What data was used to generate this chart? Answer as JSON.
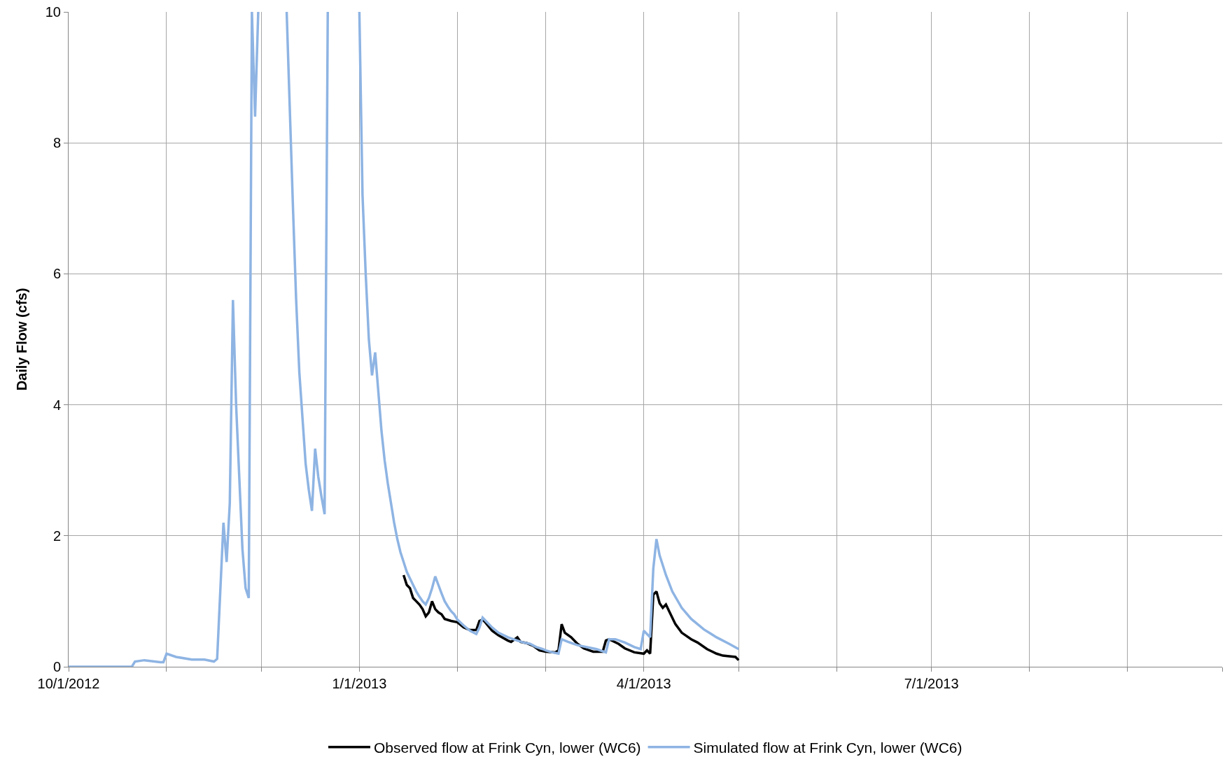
{
  "chart_data": {
    "type": "line",
    "ylabel": "Daily Flow (cfs)",
    "xlim": [
      "2012-10-01",
      "2013-10-01"
    ],
    "xticks": [
      {
        "value": "2012-10-01",
        "label": "10/1/2012"
      },
      {
        "value": "2012-11-01",
        "label": null
      },
      {
        "value": "2012-12-01",
        "label": null
      },
      {
        "value": "2013-01-01",
        "label": "1/1/2013"
      },
      {
        "value": "2013-02-01",
        "label": null
      },
      {
        "value": "2013-03-01",
        "label": null
      },
      {
        "value": "2013-04-01",
        "label": "4/1/2013"
      },
      {
        "value": "2013-05-01",
        "label": null
      },
      {
        "value": "2013-06-01",
        "label": null
      },
      {
        "value": "2013-07-01",
        "label": "7/1/2013"
      },
      {
        "value": "2013-08-01",
        "label": null
      },
      {
        "value": "2013-09-01",
        "label": null
      },
      {
        "value": "2013-10-01",
        "label": null
      }
    ],
    "ylim": [
      0,
      10
    ],
    "yticks": [
      0,
      2,
      4,
      6,
      8,
      10
    ],
    "grid": true,
    "legend": "bottom",
    "marker": "none",
    "line_style": "solid",
    "series": [
      {
        "name": "Observed flow at Frink Cyn, lower (WC6)",
        "color": "#000000",
        "x": [
          "2013-01-15",
          "2013-01-16",
          "2013-01-17",
          "2013-01-18",
          "2013-01-19",
          "2013-01-20",
          "2013-01-21",
          "2013-01-22",
          "2013-01-23",
          "2013-01-24",
          "2013-01-25",
          "2013-01-26",
          "2013-01-27",
          "2013-01-28",
          "2013-01-30",
          "2013-02-01",
          "2013-02-03",
          "2013-02-05",
          "2013-02-07",
          "2013-02-08",
          "2013-02-09",
          "2013-02-10",
          "2013-02-12",
          "2013-02-14",
          "2013-02-17",
          "2013-02-18",
          "2013-02-20",
          "2013-02-21",
          "2013-02-23",
          "2013-02-25",
          "2013-02-27",
          "2013-03-01",
          "2013-03-04",
          "2013-03-05",
          "2013-03-06",
          "2013-03-07",
          "2013-03-09",
          "2013-03-11",
          "2013-03-13",
          "2013-03-16",
          "2013-03-19",
          "2013-03-20",
          "2013-03-21",
          "2013-03-24",
          "2013-03-26",
          "2013-03-29",
          "2013-04-01",
          "2013-04-02",
          "2013-04-03",
          "2013-04-04",
          "2013-04-05",
          "2013-04-06",
          "2013-04-07",
          "2013-04-08",
          "2013-04-09",
          "2013-04-11",
          "2013-04-13",
          "2013-04-16",
          "2013-04-18",
          "2013-04-21",
          "2013-04-24",
          "2013-04-26",
          "2013-04-30",
          "2013-05-01"
        ],
        "values": [
          1.4,
          1.25,
          1.2,
          1.05,
          1.0,
          0.95,
          0.88,
          0.77,
          0.83,
          1.0,
          0.88,
          0.83,
          0.8,
          0.73,
          0.7,
          0.68,
          0.6,
          0.56,
          0.56,
          0.7,
          0.72,
          0.67,
          0.55,
          0.48,
          0.4,
          0.38,
          0.45,
          0.38,
          0.36,
          0.32,
          0.25,
          0.23,
          0.22,
          0.25,
          0.65,
          0.52,
          0.45,
          0.35,
          0.28,
          0.23,
          0.23,
          0.4,
          0.42,
          0.35,
          0.28,
          0.22,
          0.2,
          0.25,
          0.2,
          1.1,
          1.15,
          0.97,
          0.9,
          0.95,
          0.85,
          0.65,
          0.52,
          0.42,
          0.37,
          0.27,
          0.2,
          0.17,
          0.15,
          0.1
        ]
      },
      {
        "name": "Simulated flow at Frink Cyn, lower (WC6)",
        "color": "#8eb4e3",
        "x": [
          "2012-10-01",
          "2012-10-21",
          "2012-10-22",
          "2012-10-25",
          "2012-10-30",
          "2012-10-31",
          "2012-11-01",
          "2012-11-04",
          "2012-11-09",
          "2012-11-13",
          "2012-11-16",
          "2012-11-17",
          "2012-11-19",
          "2012-11-20",
          "2012-11-21",
          "2012-11-22",
          "2012-11-23",
          "2012-11-24",
          "2012-11-25",
          "2012-11-26",
          "2012-11-27",
          "2012-11-28",
          "2012-11-29",
          "2012-11-30",
          "2012-12-05",
          "2012-12-09",
          "2012-12-10",
          "2012-12-11",
          "2012-12-12",
          "2012-12-13",
          "2012-12-14",
          "2012-12-15",
          "2012-12-16",
          "2012-12-17",
          "2012-12-18",
          "2012-12-19",
          "2012-12-20",
          "2012-12-21",
          "2012-12-22",
          "2012-12-27",
          "2013-01-01",
          "2013-01-02",
          "2013-01-03",
          "2013-01-04",
          "2013-01-05",
          "2013-01-06",
          "2013-01-07",
          "2013-01-08",
          "2013-01-09",
          "2013-01-10",
          "2013-01-11",
          "2013-01-12",
          "2013-01-13",
          "2013-01-14",
          "2013-01-15",
          "2013-01-16",
          "2013-01-17",
          "2013-01-18",
          "2013-01-19",
          "2013-01-20",
          "2013-01-21",
          "2013-01-22",
          "2013-01-23",
          "2013-01-24",
          "2013-01-25",
          "2013-01-26",
          "2013-01-27",
          "2013-01-28",
          "2013-01-29",
          "2013-01-30",
          "2013-01-31",
          "2013-02-01",
          "2013-02-03",
          "2013-02-05",
          "2013-02-07",
          "2013-02-08",
          "2013-02-09",
          "2013-02-10",
          "2013-02-12",
          "2013-02-14",
          "2013-02-17",
          "2013-02-20",
          "2013-02-22",
          "2013-02-24",
          "2013-02-26",
          "2013-02-28",
          "2013-03-01",
          "2013-03-03",
          "2013-03-05",
          "2013-03-06",
          "2013-03-08",
          "2013-03-11",
          "2013-03-14",
          "2013-03-17",
          "2013-03-20",
          "2013-03-21",
          "2013-03-23",
          "2013-03-26",
          "2013-03-29",
          "2013-03-31",
          "2013-04-01",
          "2013-04-03",
          "2013-04-04",
          "2013-04-05",
          "2013-04-06",
          "2013-04-08",
          "2013-04-10",
          "2013-04-13",
          "2013-04-16",
          "2013-04-20",
          "2013-04-24",
          "2013-04-28",
          "2013-05-01"
        ],
        "values": [
          0,
          0,
          0.08,
          0.1,
          0.07,
          0.07,
          0.2,
          0.15,
          0.11,
          0.11,
          0.08,
          0.12,
          2.2,
          1.6,
          2.5,
          5.6,
          4.0,
          2.9,
          1.8,
          1.2,
          1.05,
          10,
          8.4,
          10,
          null,
          10,
          8.5,
          7,
          5.6,
          4.5,
          3.8,
          3.1,
          2.7,
          2.38,
          3.33,
          2.9,
          2.6,
          2.33,
          10,
          null,
          10,
          7.2,
          6.0,
          5.0,
          4.45,
          4.8,
          4.2,
          3.6,
          3.15,
          2.8,
          2.5,
          2.2,
          1.95,
          1.75,
          1.6,
          1.45,
          1.35,
          1.25,
          1.15,
          1.07,
          1.0,
          0.95,
          1.05,
          1.2,
          1.38,
          1.25,
          1.12,
          1.0,
          0.92,
          0.85,
          0.8,
          0.72,
          0.63,
          0.55,
          0.5,
          0.6,
          0.75,
          0.7,
          0.6,
          0.52,
          0.45,
          0.4,
          0.37,
          0.35,
          0.3,
          0.27,
          0.25,
          0.22,
          0.2,
          0.42,
          0.38,
          0.33,
          0.3,
          0.27,
          0.22,
          0.42,
          0.42,
          0.37,
          0.3,
          0.27,
          0.55,
          0.45,
          1.5,
          1.95,
          1.7,
          1.4,
          1.15,
          0.9,
          0.73,
          0.57,
          0.45,
          0.35,
          0.27
        ]
      }
    ]
  }
}
